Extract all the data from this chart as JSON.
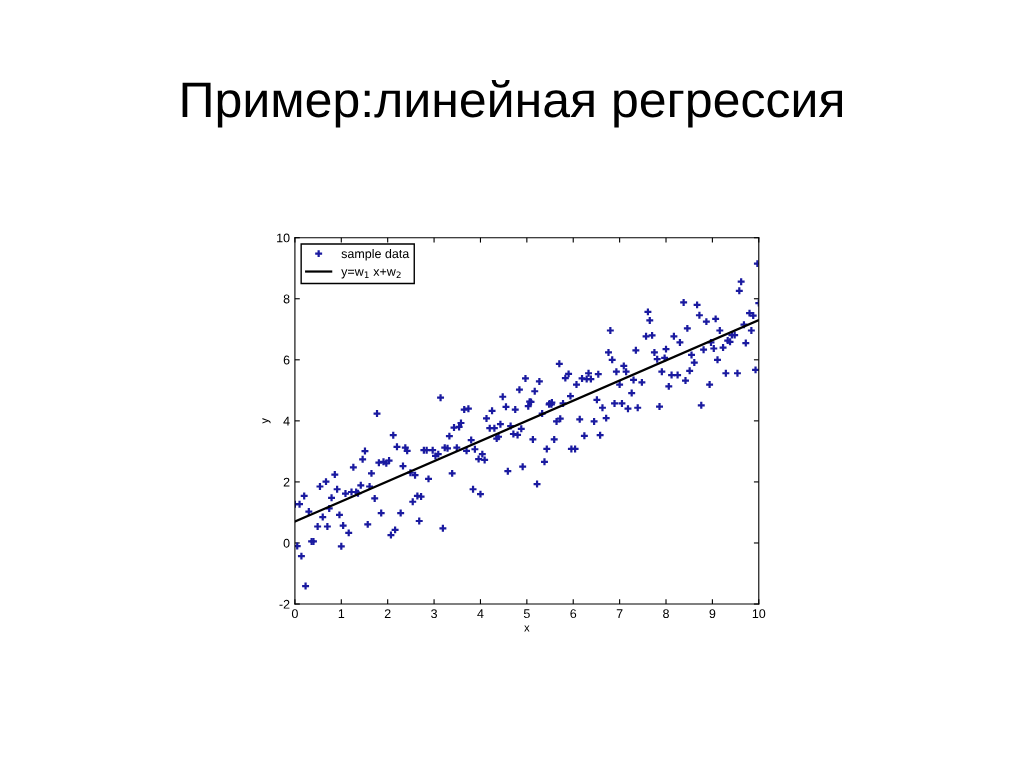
{
  "chart_data": {
    "type": "scatter",
    "title": "Пример:линейная регрессия",
    "xlabel": "x",
    "ylabel": "y",
    "xlim": [
      0,
      10
    ],
    "ylim": [
      -2,
      10
    ],
    "xticks": [
      0,
      1,
      2,
      3,
      4,
      5,
      6,
      7,
      8,
      9,
      10
    ],
    "yticks": [
      -2,
      0,
      2,
      4,
      6,
      8,
      10
    ],
    "grid": false,
    "legend": "top left",
    "series": [
      {
        "name": "sample data",
        "color": "#1a1aa0",
        "marker": "cross",
        "x": [
          0,
          0.1,
          0.05,
          0.14,
          0.2,
          0.23,
          0.3,
          0.36,
          0.4,
          0.49,
          0.54,
          0.6,
          0.67,
          0.7,
          0.74,
          0.79,
          0.86,
          0.91,
          0.96,
          1.0,
          1.04,
          1.09,
          1.16,
          1.22,
          1.26,
          1.32,
          1.36,
          1.42,
          1.46,
          1.51,
          1.57,
          1.61,
          1.65,
          1.72,
          1.77,
          1.81,
          1.86,
          1.91,
          1.97,
          2.03,
          2.07,
          2.12,
          2.16,
          2.2,
          2.28,
          2.33,
          2.38,
          2.42,
          2.49,
          2.54,
          2.59,
          2.64,
          2.68,
          2.72,
          2.78,
          2.84,
          2.88,
          2.97,
          3.03,
          3.09,
          3.14,
          3.19,
          3.23,
          3.29,
          3.33,
          3.39,
          3.43,
          3.49,
          3.54,
          3.58,
          3.65,
          3.7,
          3.74,
          3.8,
          3.84,
          3.88,
          3.96,
          4.0,
          4.04,
          4.09,
          4.13,
          4.2,
          4.25,
          4.3,
          4.35,
          4.39,
          4.43,
          4.48,
          4.55,
          4.59,
          4.65,
          4.71,
          4.75,
          4.8,
          4.84,
          4.88,
          4.91,
          4.97,
          5.03,
          5.06,
          5.09,
          5.13,
          5.17,
          5.22,
          5.27,
          5.33,
          5.38,
          5.43,
          5.48,
          5.49,
          5.53,
          5.54,
          5.59,
          5.64,
          5.7,
          5.72,
          5.78,
          5.83,
          5.9,
          5.94,
          5.96,
          6.04,
          6.07,
          6.14,
          6.19,
          6.24,
          6.29,
          6.33,
          6.38,
          6.45,
          6.51,
          6.54,
          6.58,
          6.63,
          6.71,
          6.76,
          6.8,
          6.84,
          6.89,
          6.93,
          7.0,
          7.05,
          7.09,
          7.14,
          7.18,
          7.26,
          7.3,
          7.35,
          7.39,
          7.48,
          7.57,
          7.61,
          7.65,
          7.7,
          7.75,
          7.81,
          7.86,
          7.91,
          7.97,
          8.0,
          8.06,
          8.12,
          8.17,
          8.25,
          8.3,
          8.38,
          8.42,
          8.46,
          8.51,
          8.55,
          8.61,
          8.67,
          8.72,
          8.76,
          8.81,
          8.87,
          8.94,
          8.97,
          9.03,
          9.07,
          9.11,
          9.16,
          9.23,
          9.29,
          9.33,
          9.38,
          9.42,
          9.48,
          9.54,
          9.58,
          9.62,
          9.68,
          9.72,
          9.8,
          9.84,
          9.88,
          9.93,
          9.97,
          10.0
        ],
        "values": [
          1.27,
          1.27,
          -0.1,
          -0.43,
          1.54,
          -1.41,
          1.03,
          0.05,
          0.05,
          0.54,
          1.85,
          0.85,
          2.01,
          0.54,
          1.13,
          1.48,
          2.24,
          1.76,
          0.92,
          -0.11,
          0.57,
          1.62,
          0.33,
          1.67,
          2.48,
          1.67,
          1.63,
          1.89,
          2.74,
          3.01,
          0.61,
          1.85,
          2.28,
          1.46,
          4.24,
          2.63,
          0.98,
          2.66,
          2.61,
          2.7,
          0.26,
          3.53,
          0.43,
          3.15,
          0.98,
          2.52,
          3.12,
          3.02,
          2.3,
          1.35,
          2.22,
          1.54,
          0.72,
          1.52,
          3.04,
          3.04,
          2.1,
          3.04,
          2.85,
          2.91,
          4.76,
          0.48,
          3.12,
          3.1,
          3.5,
          2.28,
          3.78,
          3.12,
          3.8,
          3.93,
          4.37,
          3.02,
          4.4,
          3.37,
          1.76,
          3.07,
          2.75,
          1.6,
          2.91,
          2.72,
          4.08,
          3.76,
          4.33,
          3.76,
          3.42,
          3.48,
          3.89,
          4.79,
          4.46,
          2.35,
          3.83,
          3.57,
          4.37,
          3.54,
          5.02,
          3.74,
          2.5,
          5.39,
          4.48,
          4.63,
          4.62,
          3.39,
          4.97,
          1.93,
          5.29,
          4.24,
          2.66,
          3.08,
          4.54,
          4.57,
          4.54,
          4.6,
          3.39,
          3.98,
          5.87,
          4.07,
          4.57,
          5.4,
          5.54,
          4.81,
          3.08,
          3.08,
          5.19,
          4.05,
          5.39,
          3.51,
          5.37,
          5.56,
          5.37,
          3.98,
          4.69,
          5.53,
          3.53,
          4.43,
          4.09,
          6.24,
          6.96,
          6.0,
          4.57,
          5.61,
          5.19,
          4.57,
          5.8,
          5.61,
          4.4,
          4.91,
          5.34,
          6.31,
          4.43,
          5.26,
          6.77,
          7.57,
          7.29,
          6.8,
          6.24,
          6.02,
          4.47,
          5.61,
          6.06,
          6.35,
          5.13,
          5.5,
          6.77,
          5.5,
          6.57,
          7.88,
          5.32,
          7.03,
          5.64,
          6.16,
          5.91,
          7.8,
          7.46,
          4.51,
          6.33,
          7.25,
          5.19,
          6.57,
          6.37,
          7.34,
          6.0,
          6.96,
          6.4,
          5.56,
          6.63,
          6.59,
          6.81,
          6.81,
          5.56,
          8.26,
          8.56,
          7.15,
          6.55,
          7.53,
          6.96,
          7.45,
          5.67,
          9.15,
          7.86
        ]
      },
      {
        "name": "y=w$_{1}$ x+w$_{2}$",
        "type": "line",
        "color": "#000000",
        "line_style": "solid",
        "marker": "none",
        "x": [
          0,
          10
        ],
        "values": [
          0.7,
          7.3
        ]
      }
    ]
  }
}
